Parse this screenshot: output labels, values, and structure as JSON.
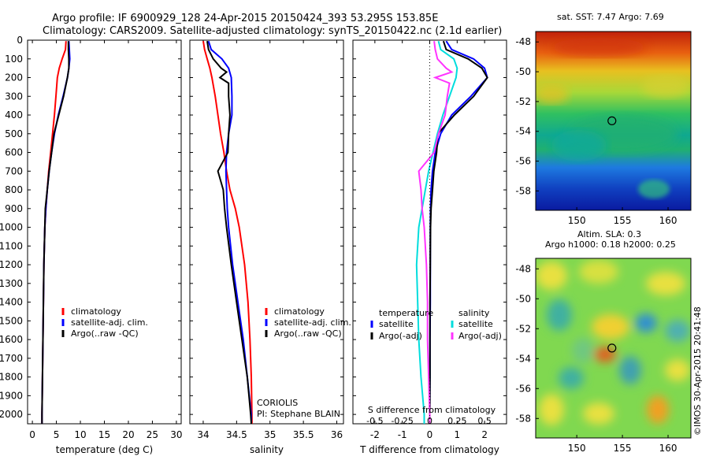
{
  "title_line1": "Argo profile: IF 6900929_128 24-Apr-2015 20150424_393 53.295S 153.85E",
  "title_line2": "Climatology: CARS2009. Satellite-adjusted climatology: synTS_20150422.nc (2.1d earlier)",
  "colors": {
    "climatology": "#ff0000",
    "satellite": "#0000ff",
    "argo": "#000000",
    "sal_satellite": "#00dddd",
    "sal_argo": "#ff33ff"
  },
  "watermark": "©IMOS 30-Apr-2015 20:41:48",
  "chart_data": [
    {
      "type": "line",
      "xlabel": "temperature (deg C)",
      "xlim": [
        -1,
        31
      ],
      "ylim": [
        2050,
        0
      ],
      "xticks": [
        "0",
        "5",
        "10",
        "15",
        "20",
        "25",
        "30"
      ],
      "xtick_values": [
        0,
        5,
        10,
        15,
        20,
        25,
        30
      ],
      "yticks": [
        "0",
        "100",
        "200",
        "300",
        "400",
        "500",
        "600",
        "700",
        "800",
        "900",
        "1000",
        "1100",
        "1200",
        "1300",
        "1400",
        "1500",
        "1600",
        "1700",
        "1800",
        "1900",
        "2000"
      ],
      "ytick_values": [
        0,
        100,
        200,
        300,
        400,
        500,
        600,
        700,
        800,
        900,
        1000,
        1100,
        1200,
        1300,
        1400,
        1500,
        1600,
        1700,
        1800,
        1900,
        2000
      ],
      "legend": [
        "climatology",
        "satellite-adj. clim.",
        "Argo(..raw -QC)"
      ],
      "series": [
        {
          "name": "climatology",
          "color": "#ff0000",
          "depth": [
            5,
            50,
            100,
            150,
            200,
            300,
            400,
            500,
            600,
            700,
            800,
            900,
            1000,
            1200,
            1400,
            1600,
            1800,
            2000,
            2050
          ],
          "values": [
            7.0,
            6.9,
            6.2,
            5.6,
            5.2,
            4.9,
            4.6,
            4.2,
            3.8,
            3.4,
            3.1,
            2.8,
            2.6,
            2.4,
            2.3,
            2.2,
            2.1,
            2.0,
            2.0
          ]
        },
        {
          "name": "satellite-adj. clim.",
          "color": "#0000ff",
          "depth": [
            5,
            50,
            100,
            150,
            200,
            300,
            400,
            500,
            600,
            700,
            800,
            900,
            1000,
            1200,
            1400,
            1600,
            1800,
            2000,
            2050
          ],
          "values": [
            7.6,
            7.7,
            7.8,
            7.6,
            7.3,
            6.4,
            5.4,
            4.6,
            4.0,
            3.5,
            3.1,
            2.8,
            2.6,
            2.4,
            2.3,
            2.2,
            2.1,
            2.0,
            2.0
          ]
        },
        {
          "name": "Argo(..raw -QC)",
          "color": "#000000",
          "depth": [
            5,
            50,
            100,
            150,
            200,
            300,
            400,
            500,
            600,
            700,
            800,
            900,
            1000,
            1200,
            1400,
            1600,
            1800,
            2000,
            2050
          ],
          "values": [
            7.5,
            7.5,
            7.6,
            7.6,
            7.3,
            6.5,
            5.5,
            4.5,
            4.0,
            3.5,
            3.1,
            2.7,
            2.6,
            2.4,
            2.3,
            2.2,
            2.1,
            2.0,
            2.0
          ]
        }
      ]
    },
    {
      "type": "line",
      "xlabel": "salinity",
      "xlim": [
        33.8,
        36.1
      ],
      "ylim": [
        2050,
        0
      ],
      "xticks": [
        "34",
        "34.5",
        "35",
        "35.5",
        "36"
      ],
      "xtick_values": [
        34,
        34.5,
        35,
        35.5,
        36
      ],
      "legend": [
        "climatology",
        "satellite-adj. clim.",
        "Argo(..raw -QC)"
      ],
      "annotation": [
        "CORIOLIS",
        "PI: Stephane BLAIN"
      ],
      "series": [
        {
          "name": "climatology",
          "color": "#ff0000",
          "depth": [
            5,
            50,
            100,
            150,
            200,
            300,
            400,
            500,
            600,
            700,
            800,
            900,
            1000,
            1200,
            1400,
            1600,
            1800,
            2000,
            2050
          ],
          "values": [
            34.0,
            34.02,
            34.06,
            34.1,
            34.13,
            34.18,
            34.22,
            34.26,
            34.31,
            34.35,
            34.4,
            34.48,
            34.54,
            34.62,
            34.67,
            34.7,
            34.72,
            34.73,
            34.73
          ]
        },
        {
          "name": "satellite-adj. clim.",
          "color": "#0000ff",
          "depth": [
            5,
            50,
            100,
            150,
            200,
            300,
            400,
            500,
            600,
            700,
            800,
            900,
            1000,
            1200,
            1400,
            1600,
            1800,
            2000,
            2050
          ],
          "values": [
            34.08,
            34.12,
            34.28,
            34.38,
            34.42,
            34.43,
            34.43,
            34.38,
            34.35,
            34.34,
            34.35,
            34.36,
            34.38,
            34.44,
            34.52,
            34.6,
            34.66,
            34.72,
            34.72
          ]
        },
        {
          "name": "Argo(..raw -QC)",
          "color": "#000000",
          "depth": [
            5,
            50,
            100,
            150,
            170,
            200,
            230,
            300,
            400,
            500,
            600,
            700,
            800,
            900,
            1000,
            1200,
            1400,
            1600,
            1800,
            2000,
            2050
          ],
          "values": [
            34.06,
            34.08,
            34.15,
            34.27,
            34.35,
            34.25,
            34.38,
            34.38,
            34.4,
            34.38,
            34.37,
            34.22,
            34.3,
            34.32,
            34.35,
            34.42,
            34.5,
            34.58,
            34.66,
            34.71,
            34.72
          ]
        }
      ]
    },
    {
      "type": "line",
      "xlabel": "T difference from climatology",
      "xlabel_top": "S difference from climatology",
      "xlim": [
        -2.8,
        2.8
      ],
      "ylim": [
        2050,
        0
      ],
      "xticks": [
        "-2",
        "-1",
        "0",
        "1",
        "2"
      ],
      "xtick_values": [
        -2,
        -1,
        0,
        1,
        2
      ],
      "xticks_s": [
        "-0.5",
        "-0.25",
        "0",
        "0.25",
        "0.5"
      ],
      "xtick_values_s": [
        -0.5,
        -0.25,
        0,
        0.25,
        0.5
      ],
      "legend_t_title": "temperature",
      "legend_s_title": "salinity",
      "legend_t": [
        "satellite",
        "Argo(-adj)"
      ],
      "legend_s": [
        "satellite",
        "Argo(-adj)"
      ],
      "series": [
        {
          "name": "satellite",
          "color": "#0000ff",
          "depth": [
            5,
            50,
            100,
            150,
            200,
            300,
            400,
            500,
            600,
            700,
            800,
            900,
            1000,
            1200,
            1400,
            1600,
            1800,
            2000,
            2050
          ],
          "values": [
            0.6,
            0.8,
            1.6,
            2.0,
            2.1,
            1.5,
            0.8,
            0.4,
            0.2,
            0.1,
            0.05,
            0.03,
            0.02,
            0.02,
            0.02,
            0.01,
            0.01,
            0.0,
            0.0
          ]
        },
        {
          "name": "Argo(-adj)",
          "color": "#000000",
          "depth": [
            5,
            50,
            100,
            150,
            200,
            300,
            400,
            500,
            600,
            700,
            800,
            900,
            1000,
            1200,
            1400,
            1600,
            1800,
            2000,
            2050
          ],
          "values": [
            0.5,
            0.6,
            1.4,
            1.9,
            2.1,
            1.6,
            0.9,
            0.3,
            0.25,
            0.15,
            0.1,
            0.05,
            0.03,
            0.02,
            0.01,
            0.01,
            0.01,
            0.0,
            0.0
          ]
        },
        {
          "name": "satellite",
          "color": "#00dddd",
          "depth": [
            5,
            50,
            100,
            150,
            200,
            300,
            400,
            500,
            600,
            700,
            800,
            900,
            1000,
            1200,
            1400,
            1600,
            1800,
            2000,
            2050
          ],
          "values": [
            0.08,
            0.1,
            0.22,
            0.25,
            0.24,
            0.18,
            0.12,
            0.07,
            0.03,
            -0.01,
            -0.04,
            -0.07,
            -0.1,
            -0.12,
            -0.11,
            -0.1,
            -0.08,
            -0.05,
            -0.05
          ]
        },
        {
          "name": "Argo(-adj)",
          "color": "#ff33ff",
          "depth": [
            5,
            50,
            100,
            150,
            170,
            200,
            230,
            300,
            400,
            500,
            600,
            700,
            800,
            900,
            1000,
            1200,
            1400,
            1600,
            1800,
            2000,
            2050
          ],
          "values": [
            0.04,
            0.05,
            0.07,
            0.15,
            0.2,
            0.05,
            0.18,
            0.16,
            0.14,
            0.08,
            0.04,
            -0.1,
            -0.08,
            -0.07,
            -0.05,
            -0.03,
            -0.02,
            -0.02,
            -0.01,
            0.0,
            0.0
          ]
        }
      ]
    },
    {
      "type": "heatmap",
      "title": "sat. SST: 7.47  Argo: 7.69",
      "xticks": [
        "150",
        "155",
        "160"
      ],
      "xtick_values": [
        150,
        155,
        160
      ],
      "yticks": [
        "-48",
        "-50",
        "-52",
        "-54",
        "-56",
        "-58"
      ],
      "ytick_values": [
        -48,
        -50,
        -52,
        -54,
        -56,
        -58
      ],
      "xlim": [
        145.5,
        162.5
      ],
      "ylim": [
        -59.3,
        -47.3
      ],
      "marker": {
        "lon": 153.85,
        "lat": -53.295
      }
    },
    {
      "type": "heatmap",
      "title_line1": "Altim. SLA: 0.3",
      "title_line2": "Argo h1000: 0.18 h2000: 0.25",
      "xticks": [
        "150",
        "155",
        "160"
      ],
      "xtick_values": [
        150,
        155,
        160
      ],
      "yticks": [
        "-48",
        "-50",
        "-52",
        "-54",
        "-56",
        "-58"
      ],
      "ytick_values": [
        -48,
        -50,
        -52,
        -54,
        -56,
        -58
      ],
      "xlim": [
        145.5,
        162.5
      ],
      "ylim": [
        -59.3,
        -47.3
      ],
      "marker": {
        "lon": 153.85,
        "lat": -53.295
      }
    }
  ]
}
